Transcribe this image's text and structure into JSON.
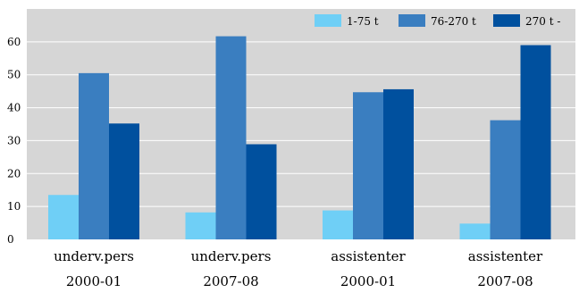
{
  "chart_data": {
    "type": "bar",
    "categories": [
      [
        "underv.pers",
        "2000-01"
      ],
      [
        "underv.pers",
        "2007-08"
      ],
      [
        "assistenter",
        "2000-01"
      ],
      [
        "assistenter",
        "2007-08"
      ]
    ],
    "series": [
      {
        "name": "1-75 t",
        "color": "#6fcff6",
        "values": [
          13.5,
          8.2,
          8.8,
          4.8
        ]
      },
      {
        "name": "76-270 t",
        "color": "#3a7ec0",
        "values": [
          50.5,
          61.7,
          44.7,
          36.2
        ]
      },
      {
        "name": "270 t -",
        "color": "#00509e",
        "values": [
          35.2,
          28.9,
          45.6,
          59.0
        ]
      }
    ],
    "ylim": [
      0,
      70
    ],
    "yticks": [
      0,
      10,
      20,
      30,
      40,
      50,
      60
    ],
    "grid": true,
    "legend_position": "top-right",
    "plot_background": "#d6d6d6",
    "grid_color": "#ffffff"
  }
}
